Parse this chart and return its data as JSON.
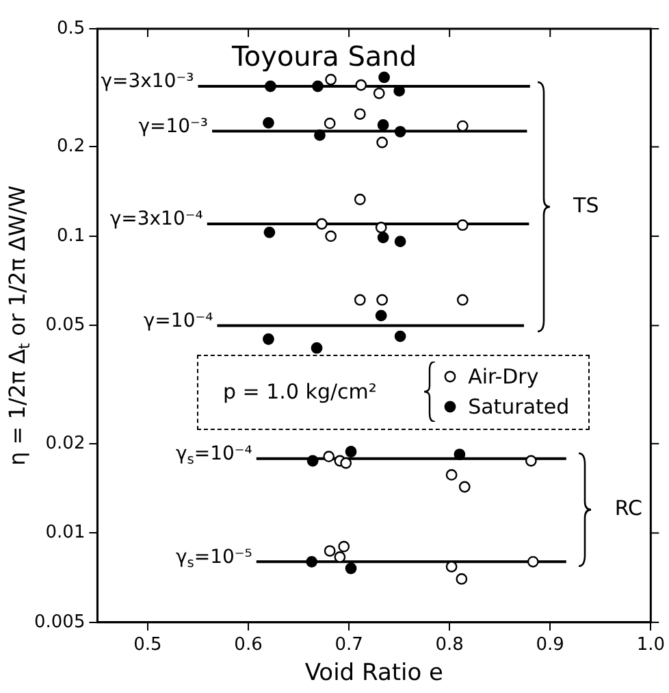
{
  "chart_data": {
    "type": "scatter",
    "title": "Toyoura Sand",
    "xlabel": "Void Ratio e",
    "ylabel": "η = 1/2π Δ$_{t}$ or 1/2π ΔW/W",
    "xlim": [
      0.45,
      1.0
    ],
    "xticks": [
      0.5,
      0.6,
      0.7,
      0.8,
      0.9,
      {
        "value": 1.0,
        "label": "1.0"
      }
    ],
    "ylim": [
      0.005,
      0.5
    ],
    "yticks": [
      0.005,
      0.01,
      0.02,
      0.05,
      0.1,
      0.2,
      0.5
    ],
    "log": "y",
    "grid": false,
    "marker": "circle",
    "legend": "bottom",
    "series": [
      {
        "name": "Air-Dry",
        "color": "#ffffff",
        "x": [
          0.682,
          0.712,
          0.73,
          0.681,
          0.711,
          0.733,
          0.813,
          0.673,
          0.682,
          0.711,
          0.732,
          0.813,
          0.711,
          0.733,
          0.813,
          0.68,
          0.691,
          0.697,
          0.802,
          0.815,
          0.881,
          0.681,
          0.691,
          0.695,
          0.802,
          0.812,
          0.883
        ],
        "values": [
          0.337,
          0.323,
          0.303,
          0.24,
          0.258,
          0.207,
          0.235,
          0.11,
          0.1,
          0.133,
          0.107,
          0.109,
          0.061,
          0.061,
          0.061,
          0.0181,
          0.0175,
          0.0172,
          0.0157,
          0.0143,
          0.0175,
          0.0087,
          0.0083,
          0.009,
          0.0077,
          0.007,
          0.008
        ]
      },
      {
        "name": "Saturated",
        "color": "#000000",
        "x": [
          0.622,
          0.669,
          0.735,
          0.75,
          0.62,
          0.671,
          0.734,
          0.751,
          0.621,
          0.734,
          0.751,
          0.732,
          0.62,
          0.668,
          0.751,
          0.664,
          0.702,
          0.81,
          0.663,
          0.702
        ],
        "values": [
          0.32,
          0.32,
          0.343,
          0.309,
          0.241,
          0.219,
          0.237,
          0.225,
          0.103,
          0.099,
          0.096,
          0.054,
          0.045,
          0.042,
          0.046,
          0.0175,
          0.0188,
          0.0184,
          0.008,
          0.0076
        ]
      },
      {
        "name": "γ=3x10⁻³",
        "type": "line",
        "marker": "none",
        "color": "#000000",
        "x": [
          0.55,
          0.88
        ],
        "values": [
          0.32,
          0.32
        ]
      },
      {
        "name": "γ=10⁻³",
        "type": "line",
        "marker": "none",
        "color": "#000000",
        "x": [
          0.564,
          0.877
        ],
        "values": [
          0.226,
          0.226
        ]
      },
      {
        "name": "γ=3x10⁻⁴",
        "type": "line",
        "marker": "none",
        "color": "#000000",
        "x": [
          0.559,
          0.879
        ],
        "values": [
          0.11,
          0.11
        ]
      },
      {
        "name": "γ=10⁻⁴",
        "type": "line",
        "marker": "none",
        "color": "#000000",
        "x": [
          0.569,
          0.874
        ],
        "values": [
          0.05,
          0.05
        ]
      },
      {
        "name": "γ$_{s}$=10⁻⁴",
        "type": "line",
        "marker": "none",
        "color": "#000000",
        "x": [
          0.608,
          0.916
        ],
        "values": [
          0.0178,
          0.0178
        ]
      },
      {
        "name": "γ$_{s}$=10⁻⁵",
        "type": "line",
        "marker": "none",
        "color": "#000000",
        "x": [
          0.608,
          0.916
        ],
        "values": [
          0.008,
          0.008
        ]
      }
    ],
    "annotations": [
      "p = 1.0 kg/cm²",
      "TS",
      "RC"
    ]
  }
}
